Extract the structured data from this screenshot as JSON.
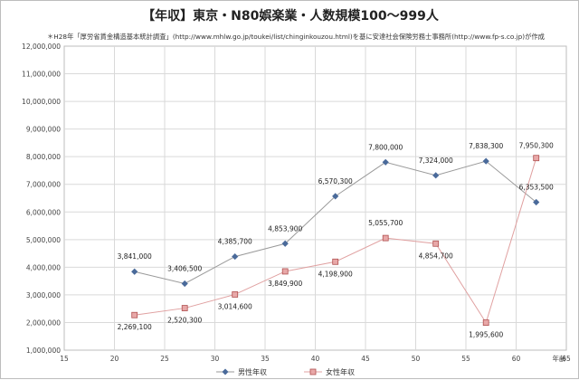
{
  "chart_data": {
    "type": "line",
    "title": "【年収】東京・N80娯楽業・人数規模100～999人",
    "subtitle": "＊H28年「厚労省賃金構造基本統計調査」(http://www.mhlw.go.jp/toukei/list/chinginkouzou.html)を基に安達社会保険労務士事務所(http://www.fp-s.co.jp)が作成",
    "xlabel": "年齢",
    "ylabel": "",
    "xlim": [
      15,
      65
    ],
    "ylim": [
      1000000,
      12000000
    ],
    "xticks": [
      15,
      20,
      25,
      30,
      35,
      40,
      45,
      50,
      55,
      60,
      65
    ],
    "yticks": [
      1000000,
      2000000,
      3000000,
      4000000,
      5000000,
      6000000,
      7000000,
      8000000,
      9000000,
      10000000,
      11000000,
      12000000
    ],
    "ytick_labels": [
      "1,000,000",
      "2,000,000",
      "3,000,000",
      "4,000,000",
      "5,000,000",
      "6,000,000",
      "7,000,000",
      "8,000,000",
      "9,000,000",
      "10,000,000",
      "11,000,000",
      "12,000,000"
    ],
    "x": [
      22,
      27,
      32,
      37,
      42,
      47,
      52,
      57,
      62
    ],
    "grid": true,
    "legend_position": "bottom",
    "series": [
      {
        "name": "男性年収",
        "color": "#4a6a9a",
        "line_color": "#9a9a9a",
        "marker": "diamond",
        "values": [
          3841000,
          3406500,
          4385700,
          4853900,
          6570300,
          7800000,
          7324000,
          7838300,
          6353500
        ],
        "labels": [
          "3,841,000",
          "3,406,500",
          "4,385,700",
          "4,853,900",
          "6,570,300",
          "7,800,000",
          "7,324,000",
          "7,838,300",
          "6,353,500"
        ]
      },
      {
        "name": "女性年収",
        "color": "#e8a8a8",
        "edge_color": "#b05050",
        "line_color": "#e0a0a0",
        "marker": "square",
        "values": [
          2269100,
          2520300,
          3014600,
          3849900,
          4198900,
          5055700,
          4854700,
          1995600,
          7950300
        ],
        "labels": [
          "2,269,100",
          "2,520,300",
          "3,014,600",
          "3,849,900",
          "4,198,900",
          "5,055,700",
          "4,854,700",
          "1,995,600",
          "7,950,300"
        ]
      }
    ]
  }
}
